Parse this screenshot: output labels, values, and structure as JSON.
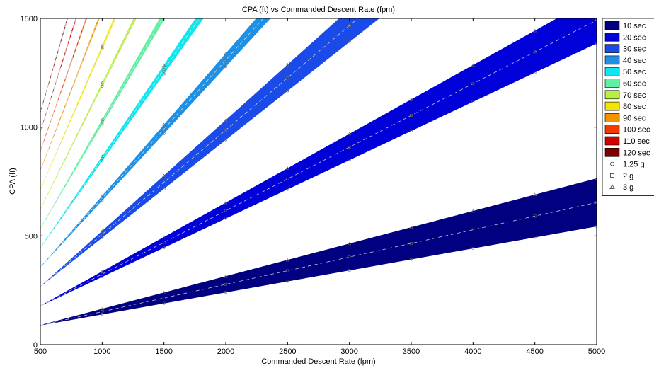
{
  "chart_data": {
    "type": "area",
    "title": "CPA (ft) vs Commanded Descent Rate (fpm)",
    "xlabel": "Commanded Descent Rate (fpm)",
    "ylabel": "CPA (ft)",
    "xlim": [
      500,
      5000
    ],
    "ylim": [
      0,
      1500
    ],
    "xticks": [
      "500",
      "1000",
      "1500",
      "2000",
      "2500",
      "3000",
      "3500",
      "4000",
      "4500",
      "5000"
    ],
    "yticks": [
      "0",
      "500",
      "1000",
      "1500"
    ],
    "legend_position": "right",
    "marker_descent_rates": [
      1000,
      1500,
      2000,
      2500,
      3000,
      3500,
      4000,
      4500,
      5000
    ],
    "series": [
      {
        "name": "10 sec",
        "t": 10,
        "color": "#000080",
        "low_slope": 0.1012,
        "mid_slope": 0.1255,
        "high_slope": 0.15
      },
      {
        "name": "20 sec",
        "t": 20,
        "color": "#0000d8",
        "low_slope": 0.2684,
        "mid_slope": 0.292,
        "high_slope": 0.3163
      },
      {
        "name": "30 sec",
        "t": 30,
        "color": "#1a4be8",
        "low_slope": 0.45,
        "mid_slope": 0.48,
        "high_slope": 0.51
      },
      {
        "name": "40 sec",
        "t": 40,
        "color": "#1e90e6",
        "low_slope": 0.615,
        "mid_slope": 0.635,
        "high_slope": 0.655
      },
      {
        "name": "50 sec",
        "t": 50,
        "color": "#10e6f0",
        "low_slope": 0.8,
        "mid_slope": 0.82,
        "high_slope": 0.84
      },
      {
        "name": "60 sec",
        "t": 60,
        "color": "#5ff0a0",
        "low_slope": 0.96,
        "mid_slope": 0.98,
        "high_slope": 1.0
      },
      {
        "name": "70 sec",
        "t": 70,
        "color": "#b8f040",
        "low_slope": 1.13,
        "mid_slope": 1.145,
        "high_slope": 1.16
      },
      {
        "name": "80 sec",
        "t": 80,
        "color": "#f2e600",
        "low_slope": 1.295,
        "mid_slope": 1.31,
        "high_slope": 1.325
      },
      {
        "name": "90 sec",
        "t": 90,
        "color": "#f29400",
        "low_slope": 1.46,
        "mid_slope": 1.475,
        "high_slope": 1.49
      },
      {
        "name": "100 sec",
        "t": 100,
        "color": "#f23a00",
        "low_slope": 1.625,
        "mid_slope": 1.64,
        "high_slope": 1.655
      },
      {
        "name": "110 sec",
        "t": 110,
        "color": "#d40000",
        "low_slope": 1.79,
        "mid_slope": 1.805,
        "high_slope": 1.82
      },
      {
        "name": "120 sec",
        "t": 120,
        "color": "#800000",
        "low_slope": 1.955,
        "mid_slope": 1.97,
        "high_slope": 1.985
      }
    ],
    "marker_legend": [
      {
        "name": "1.25 g",
        "symbol": "circle"
      },
      {
        "name": "2 g",
        "symbol": "square"
      },
      {
        "name": "3 g",
        "symbol": "triangle"
      }
    ]
  }
}
